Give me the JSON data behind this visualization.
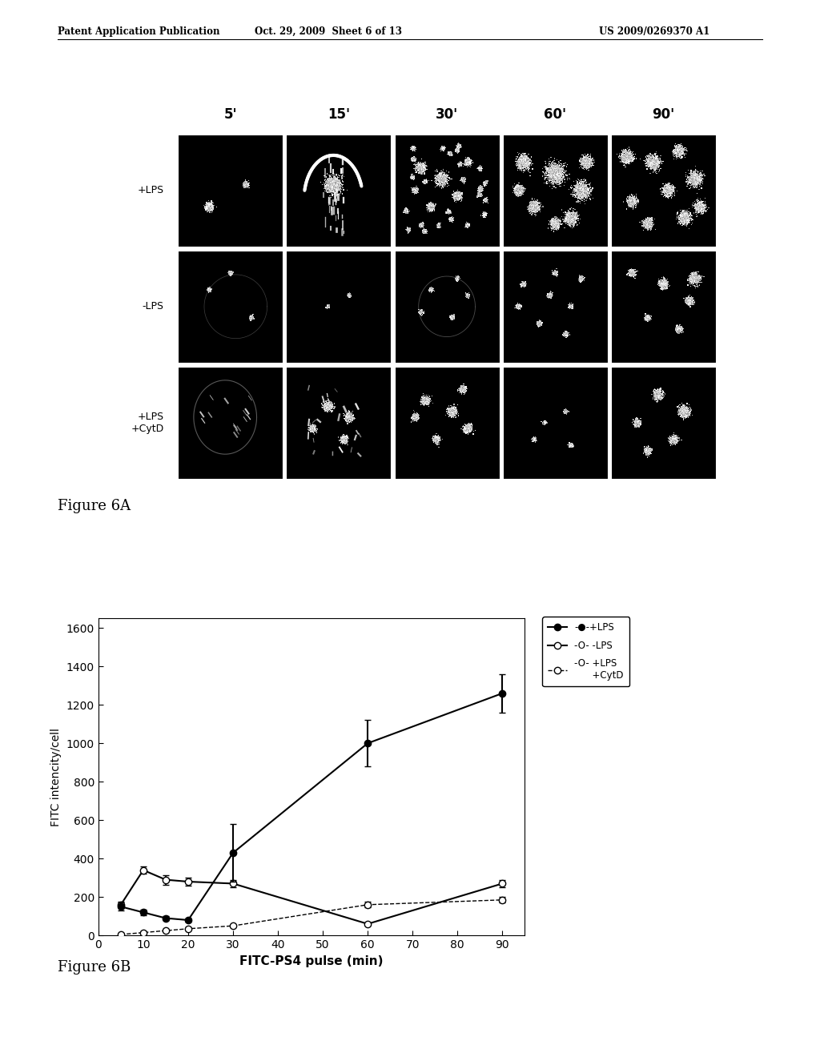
{
  "header_left": "Patent Application Publication",
  "header_mid": "Oct. 29, 2009  Sheet 6 of 13",
  "header_right": "US 2009/0269370 A1",
  "fig6a_label": "Figure 6A",
  "fig6b_label": "Figure 6B",
  "col_labels": [
    "5'",
    "15'",
    "30'",
    "60'",
    "90'"
  ],
  "row_labels": [
    "+LPS",
    "-LPS",
    "+LPS\n+CytD"
  ],
  "xlabel": "FITC-PS4 pulse (min)",
  "ylabel": "FITC intencity/cell",
  "xticks": [
    0,
    10,
    20,
    30,
    40,
    50,
    60,
    70,
    80,
    90
  ],
  "yticks": [
    0,
    200,
    400,
    600,
    800,
    1000,
    1200,
    1400,
    1600
  ],
  "ylim": [
    0,
    1650
  ],
  "xlim": [
    0,
    95
  ],
  "series_lps_x": [
    5,
    10,
    15,
    20,
    30,
    60,
    90
  ],
  "series_lps_y": [
    150,
    120,
    90,
    80,
    430,
    1000,
    1260
  ],
  "series_lps_err": [
    20,
    15,
    10,
    10,
    150,
    120,
    100
  ],
  "series_minus_lps_x": [
    5,
    10,
    15,
    20,
    30,
    60,
    90
  ],
  "series_minus_lps_y": [
    160,
    340,
    290,
    280,
    270,
    60,
    270
  ],
  "series_minus_lps_err": [
    15,
    20,
    25,
    20,
    20,
    5,
    20
  ],
  "series_cytd_x": [
    5,
    10,
    15,
    20,
    30,
    60,
    90
  ],
  "series_cytd_y": [
    5,
    15,
    25,
    35,
    50,
    160,
    185
  ],
  "series_cytd_err": [
    3,
    5,
    5,
    5,
    5,
    15,
    15
  ],
  "bg_color": "#ffffff",
  "text_color": "#000000"
}
